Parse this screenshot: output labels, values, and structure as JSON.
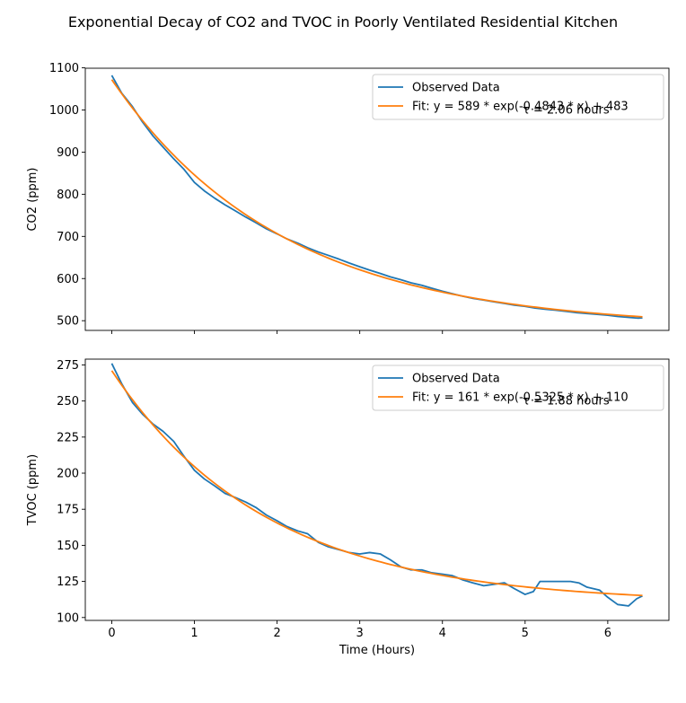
{
  "figure": {
    "title": "Exponential Decay of CO2 and TVOC in Poorly Ventilated Residential Kitchen"
  },
  "colors": {
    "observed": "#1f77b4",
    "fit": "#ff7f0e"
  },
  "chart_data": [
    {
      "type": "line",
      "title": "",
      "xlabel": "",
      "ylabel": "CO2 (ppm)",
      "xlim": [
        -0.32,
        6.74
      ],
      "ylim": [
        477,
        1099
      ],
      "x_ticks": [
        0,
        1,
        2,
        3,
        4,
        5,
        6
      ],
      "x_tick_labels": [],
      "y_ticks": [
        500,
        600,
        700,
        800,
        900,
        1000,
        1100
      ],
      "y_tick_labels": [
        "500",
        "600",
        "700",
        "800",
        "900",
        "1000",
        "1100"
      ],
      "legend_position": "upper right",
      "annotation": "τ = 2.06 hours",
      "series": [
        {
          "name": "Observed Data",
          "color": "#1f77b4",
          "x": [
            0,
            0.12,
            0.25,
            0.37,
            0.5,
            0.62,
            0.75,
            0.87,
            1.0,
            1.12,
            1.25,
            1.37,
            1.5,
            1.62,
            1.75,
            1.87,
            2.0,
            2.12,
            2.25,
            2.37,
            2.5,
            2.62,
            2.75,
            2.87,
            3.0,
            3.12,
            3.25,
            3.37,
            3.5,
            3.62,
            3.75,
            3.87,
            4.0,
            4.12,
            4.25,
            4.37,
            4.5,
            4.62,
            4.75,
            4.87,
            5.0,
            5.12,
            5.25,
            5.37,
            5.5,
            5.62,
            5.75,
            5.87,
            6.0,
            6.12,
            6.25,
            6.37,
            6.42
          ],
          "y": [
            1082,
            1040,
            1008,
            972,
            938,
            912,
            884,
            860,
            828,
            808,
            790,
            775,
            760,
            746,
            732,
            718,
            706,
            694,
            684,
            673,
            663,
            655,
            646,
            637,
            628,
            620,
            612,
            604,
            597,
            590,
            584,
            577,
            570,
            564,
            558,
            553,
            549,
            545,
            541,
            537,
            534,
            530,
            527,
            525,
            522,
            519,
            517,
            515,
            513,
            510,
            508,
            506,
            507
          ]
        },
        {
          "name": "Fit: y =   589 * exp(-0.4843 * x) +   483",
          "color": "#ff7f0e",
          "fit": {
            "a": 589,
            "b": -0.4843,
            "c": 483
          },
          "x_range": [
            0,
            6.42
          ]
        }
      ]
    },
    {
      "type": "line",
      "title": "",
      "xlabel": "Time (Hours)",
      "ylabel": "TVOC (ppm)",
      "xlim": [
        -0.32,
        6.74
      ],
      "ylim": [
        98,
        279
      ],
      "x_ticks": [
        0,
        1,
        2,
        3,
        4,
        5,
        6
      ],
      "x_tick_labels": [
        "0",
        "1",
        "2",
        "3",
        "4",
        "5",
        "6"
      ],
      "y_ticks": [
        100,
        125,
        150,
        175,
        200,
        225,
        250,
        275
      ],
      "y_tick_labels": [
        "100",
        "125",
        "150",
        "175",
        "200",
        "225",
        "250",
        "275"
      ],
      "legend_position": "upper right",
      "annotation": "τ = 1.88 hours",
      "series": [
        {
          "name": "Observed Data",
          "color": "#1f77b4",
          "x": [
            0,
            0.12,
            0.25,
            0.37,
            0.5,
            0.62,
            0.75,
            0.87,
            1.0,
            1.12,
            1.25,
            1.37,
            1.5,
            1.62,
            1.75,
            1.87,
            2.0,
            2.12,
            2.25,
            2.37,
            2.5,
            2.62,
            2.75,
            2.87,
            3.0,
            3.12,
            3.25,
            3.37,
            3.5,
            3.62,
            3.75,
            3.87,
            4.0,
            4.12,
            4.25,
            4.37,
            4.5,
            4.62,
            4.75,
            4.87,
            5.0,
            5.1,
            5.18,
            5.3,
            5.45,
            5.55,
            5.65,
            5.75,
            5.9,
            6.0,
            6.12,
            6.25,
            6.35,
            6.42
          ],
          "y": [
            276,
            262,
            249,
            241,
            234,
            229,
            222,
            212,
            202,
            196,
            191,
            186,
            183,
            180,
            176,
            171,
            167,
            163,
            160,
            158,
            152,
            149,
            147,
            145,
            144,
            145,
            144,
            140,
            135,
            133,
            133,
            131,
            130,
            129,
            126,
            124,
            122,
            123,
            124,
            120,
            116,
            118,
            125,
            125,
            125,
            125,
            124,
            121,
            119,
            114,
            109,
            108,
            113,
            115
          ]
        },
        {
          "name": "Fit: y =   161 * exp(-0.5325 * x) +   110",
          "color": "#ff7f0e",
          "fit": {
            "a": 161,
            "b": -0.5325,
            "c": 110
          },
          "x_range": [
            0,
            6.42
          ]
        }
      ]
    }
  ]
}
